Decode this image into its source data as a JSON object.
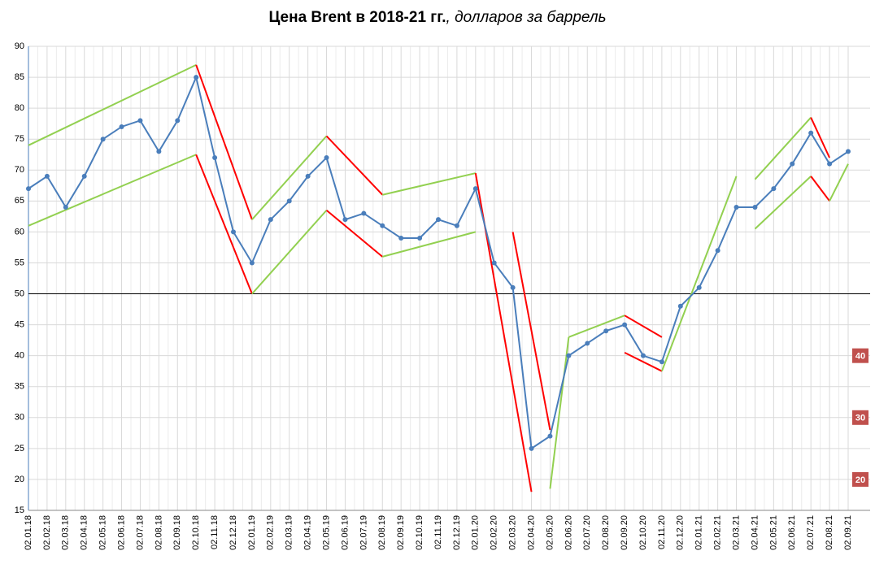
{
  "chart_data": {
    "type": "line",
    "title": "Цена Brent в 2018-21 гг.",
    "subtitle": ", долларов за баррель",
    "categories": [
      "02.01.18",
      "02.02.18",
      "02.03.18",
      "02.04.18",
      "02.05.18",
      "02.06.18",
      "02.07.18",
      "02.08.18",
      "02.09.18",
      "02.10.18",
      "02.11.18",
      "02.12.18",
      "02.01.19",
      "02.02.19",
      "02.03.19",
      "02.04.19",
      "02.05.19",
      "02.06.19",
      "02.07.19",
      "02.08.19",
      "02.09.19",
      "02.10.19",
      "02.11.19",
      "02.12.19",
      "02.01.20",
      "02.02.20",
      "02.03.20",
      "02.04.20",
      "02.05.20",
      "02.06.20",
      "02.07.20",
      "02.08.20",
      "02.09.20",
      "02.10.20",
      "02.11.20",
      "02.12.20",
      "02.01.21",
      "02.02.21",
      "02.03.21",
      "02.04.21",
      "02.05.21",
      "02.06.21",
      "02.07.21",
      "02.08.21",
      "02.09.21"
    ],
    "series": [
      {
        "name": "Brent",
        "color": "#4a7ebb",
        "values": [
          67,
          69,
          64,
          69,
          75,
          77,
          78,
          73,
          78,
          85,
          72,
          60,
          55,
          62,
          65,
          69,
          72,
          62,
          63,
          61,
          59,
          59,
          62,
          61,
          67,
          55,
          51,
          25,
          27,
          40,
          42,
          44,
          45,
          40,
          39,
          48,
          51,
          57,
          64,
          64,
          67,
          71,
          76,
          71,
          73
        ]
      }
    ],
    "ylim": [
      15,
      90
    ],
    "yticks": [
      15,
      20,
      25,
      30,
      35,
      40,
      45,
      50,
      55,
      60,
      65,
      70,
      75,
      80,
      85,
      90
    ],
    "grid": true,
    "reference_line": 50,
    "badges": [
      40,
      30,
      20
    ],
    "trend_lines": [
      {
        "color": "#92d050",
        "from": [
          "02.01.18",
          74
        ],
        "to": [
          "02.10.18",
          87
        ]
      },
      {
        "color": "#92d050",
        "from": [
          "02.01.18",
          61
        ],
        "to": [
          "02.10.18",
          72.5
        ]
      },
      {
        "color": "#ff0000",
        "from": [
          "02.10.18",
          87
        ],
        "to": [
          "02.01.19",
          62
        ]
      },
      {
        "color": "#ff0000",
        "from": [
          "02.10.18",
          72.5
        ],
        "to": [
          "02.01.19",
          50
        ]
      },
      {
        "color": "#92d050",
        "from": [
          "02.01.19",
          50
        ],
        "to": [
          "02.05.19",
          63.5
        ]
      },
      {
        "color": "#92d050",
        "from": [
          "02.01.19",
          62
        ],
        "to": [
          "02.05.19",
          75.5
        ]
      },
      {
        "color": "#ff0000",
        "from": [
          "02.05.19",
          75.5
        ],
        "to": [
          "02.08.19",
          66
        ]
      },
      {
        "color": "#ff0000",
        "from": [
          "02.05.19",
          63.5
        ],
        "to": [
          "02.08.19",
          56
        ]
      },
      {
        "color": "#92d050",
        "from": [
          "02.08.19",
          66
        ],
        "to": [
          "02.01.20",
          69.5
        ]
      },
      {
        "color": "#92d050",
        "from": [
          "02.08.19",
          56
        ],
        "to": [
          "02.01.20",
          60
        ]
      },
      {
        "color": "#ff0000",
        "from": [
          "02.01.20",
          69.5
        ],
        "to": [
          "02.04.20",
          18
        ]
      },
      {
        "color": "#ff0000",
        "from": [
          "02.03.20",
          60
        ],
        "to": [
          "02.05.20",
          28
        ]
      },
      {
        "color": "#92d050",
        "from": [
          "02.05.20",
          18.5
        ],
        "to": [
          "02.06.20",
          43
        ]
      },
      {
        "color": "#92d050",
        "from": [
          "02.06.20",
          43
        ],
        "to": [
          "02.09.20",
          46.5
        ]
      },
      {
        "color": "#ff0000",
        "from": [
          "02.09.20",
          46.5
        ],
        "to": [
          "02.11.20",
          43
        ]
      },
      {
        "color": "#ff0000",
        "from": [
          "02.09.20",
          40.5
        ],
        "to": [
          "02.11.20",
          37.5
        ]
      },
      {
        "color": "#92d050",
        "from": [
          "02.11.20",
          37.5
        ],
        "to": [
          "02.03.21",
          69
        ]
      },
      {
        "color": "#92d050",
        "from": [
          "02.04.21",
          68.5
        ],
        "to": [
          "02.07.21",
          78.5
        ]
      },
      {
        "color": "#92d050",
        "from": [
          "02.04.21",
          60.5
        ],
        "to": [
          "02.07.21",
          69
        ]
      },
      {
        "color": "#ff0000",
        "from": [
          "02.07.21",
          78.5
        ],
        "to": [
          "02.08.21",
          72
        ]
      },
      {
        "color": "#ff0000",
        "from": [
          "02.07.21",
          69
        ],
        "to": [
          "02.08.21",
          65
        ]
      },
      {
        "color": "#92d050",
        "from": [
          "02.08.21",
          65
        ],
        "to": [
          "02.09.21",
          71
        ]
      }
    ]
  }
}
